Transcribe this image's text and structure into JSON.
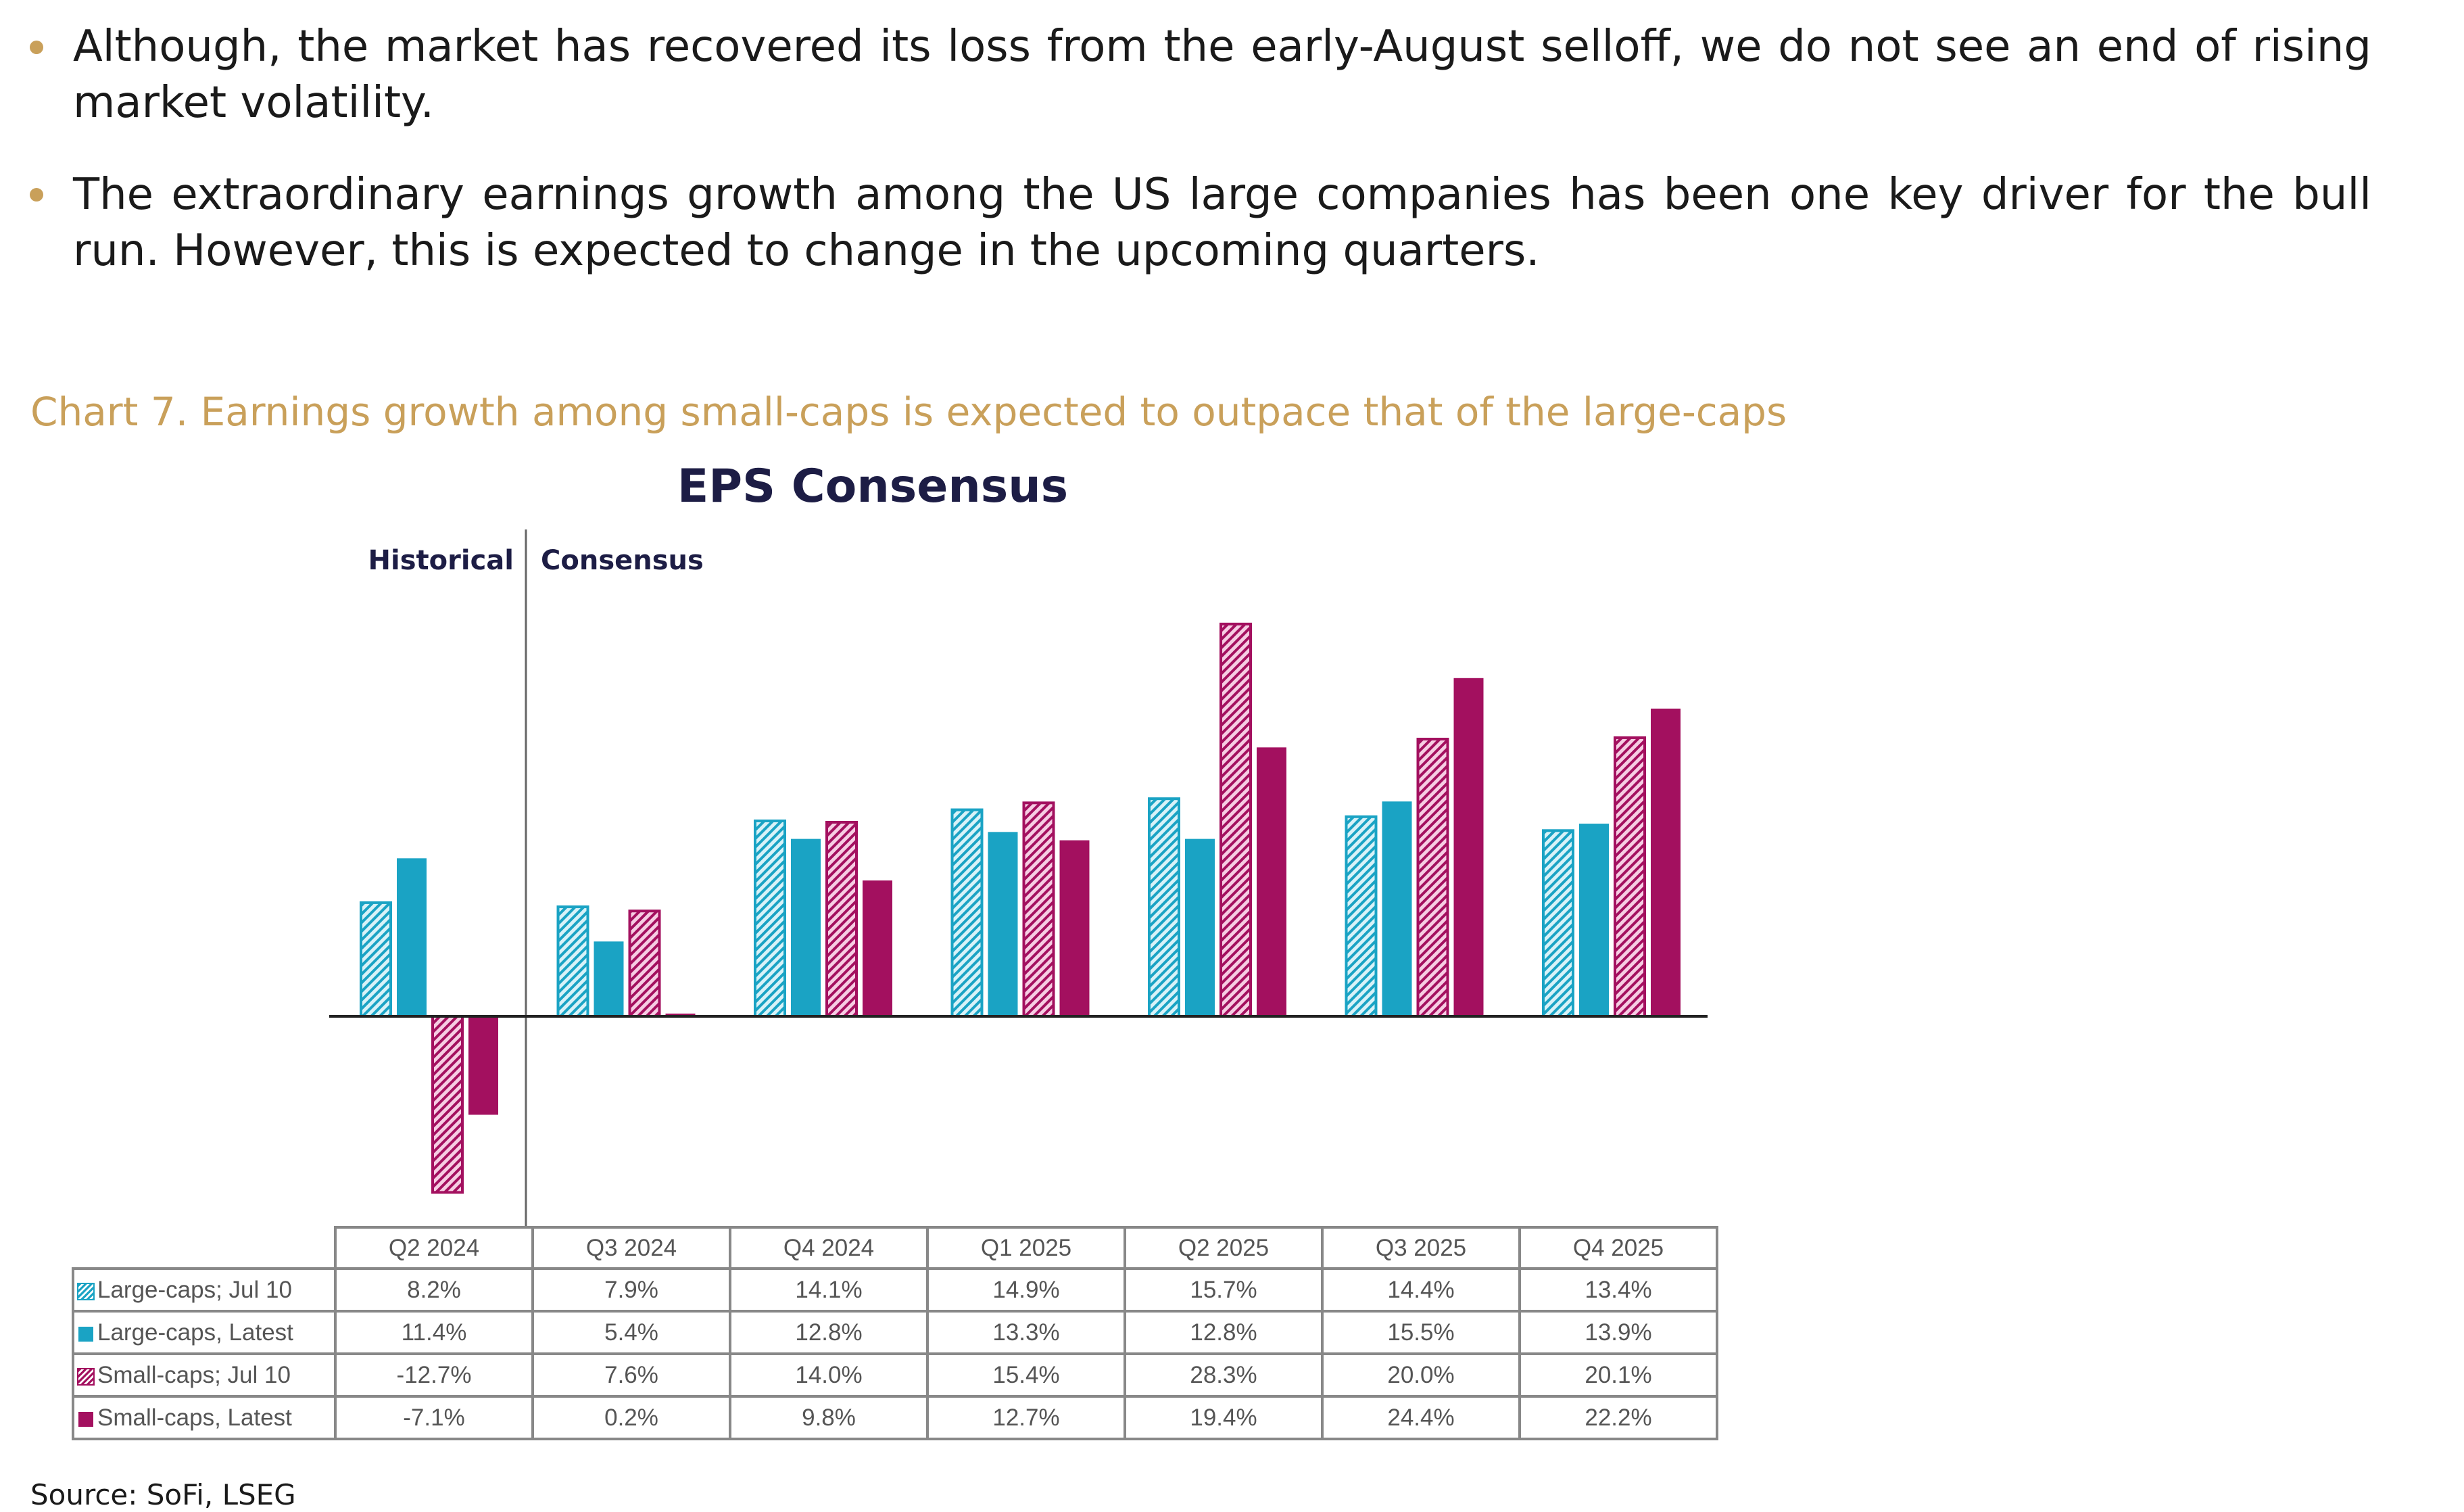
{
  "bullets": [
    "Although, the market has recovered its loss from the early-August selloff, we do not see an end of rising market volatility.",
    "The extraordinary earnings growth among the US large companies has been one key driver for the bull run. However, this is expected to change in the upcoming quarters."
  ],
  "caption": "Chart 7. Earnings growth among small-caps is expected to outpace that of the large-caps",
  "source": "Source: SoFi, LSEG",
  "colors": {
    "accent": "#c9a05a",
    "teal": "#1aa3c4",
    "magenta": "#a3105f",
    "title": "#1d1d45"
  },
  "chart_data": {
    "type": "bar",
    "title": "EPS Consensus",
    "annotations": [
      "Historical",
      "Consensus"
    ],
    "categories": [
      "Q2 2024",
      "Q3 2024",
      "Q4 2024",
      "Q1 2025",
      "Q2 2025",
      "Q3 2025",
      "Q4 2025"
    ],
    "unit": "%",
    "series": [
      {
        "name": "Large-caps; Jul 10",
        "style": "hatched",
        "color": "#1aa3c4",
        "values": [
          8.2,
          7.9,
          14.1,
          14.9,
          15.7,
          14.4,
          13.4
        ],
        "labels": [
          "8.2%",
          "7.9%",
          "14.1%",
          "14.9%",
          "15.7%",
          "14.4%",
          "13.4%"
        ]
      },
      {
        "name": "Large-caps, Latest",
        "style": "solid",
        "color": "#1aa3c4",
        "values": [
          11.4,
          5.4,
          12.8,
          13.3,
          12.8,
          15.5,
          13.9
        ],
        "labels": [
          "11.4%",
          "5.4%",
          "12.8%",
          "13.3%",
          "12.8%",
          "15.5%",
          "13.9%"
        ]
      },
      {
        "name": "Small-caps; Jul 10",
        "style": "hatched",
        "color": "#a3105f",
        "values": [
          -12.7,
          7.6,
          14.0,
          15.4,
          28.3,
          20.0,
          20.1
        ],
        "labels": [
          "-12.7%",
          "7.6%",
          "14.0%",
          "15.4%",
          "28.3%",
          "20.0%",
          "20.1%"
        ]
      },
      {
        "name": "Small-caps, Latest",
        "style": "solid",
        "color": "#a3105f",
        "values": [
          -7.1,
          0.2,
          9.8,
          12.7,
          19.4,
          24.4,
          22.2
        ],
        "labels": [
          "-7.1%",
          "0.2%",
          "9.8%",
          "12.7%",
          "19.4%",
          "24.4%",
          "22.2%"
        ]
      }
    ],
    "legend": "table-below",
    "grid": false
  }
}
